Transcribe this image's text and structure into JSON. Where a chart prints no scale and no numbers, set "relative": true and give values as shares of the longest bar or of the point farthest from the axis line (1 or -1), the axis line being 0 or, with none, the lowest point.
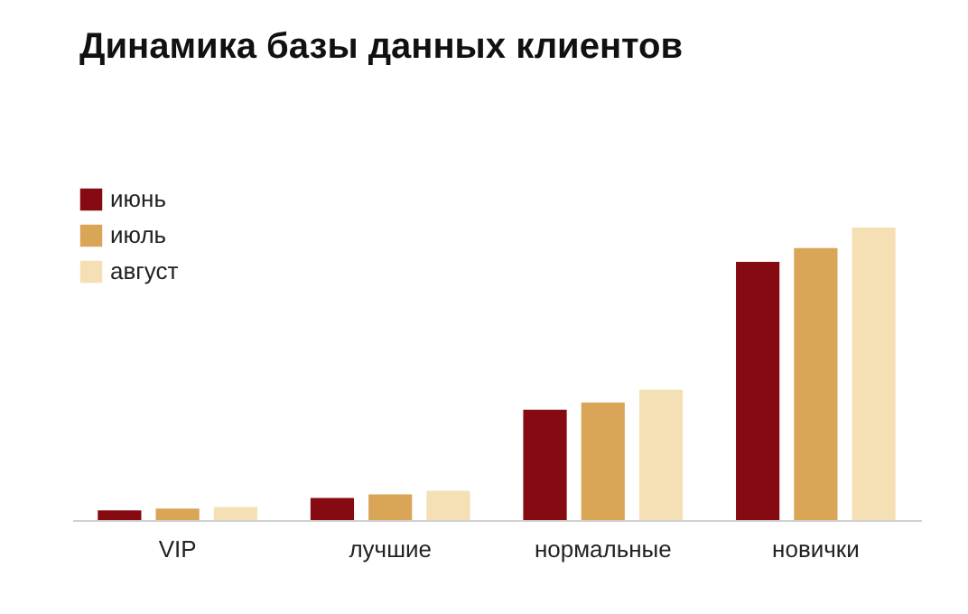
{
  "chart_data": {
    "type": "bar",
    "title": "Динамика базы данных клиентов",
    "categories": [
      "VIP",
      "лучшие",
      "нормальные",
      "новички"
    ],
    "relative": true,
    "legend": "top left",
    "series": [
      {
        "name": "июнь",
        "color": "#850a12",
        "values": [
          0.033,
          0.076,
          0.377,
          0.883
        ]
      },
      {
        "name": "июль",
        "color": "#d9a556",
        "values": [
          0.039,
          0.088,
          0.402,
          0.93
        ]
      },
      {
        "name": "август",
        "color": "#f5e0b5",
        "values": [
          0.045,
          0.1,
          0.445,
          1
        ]
      }
    ]
  }
}
